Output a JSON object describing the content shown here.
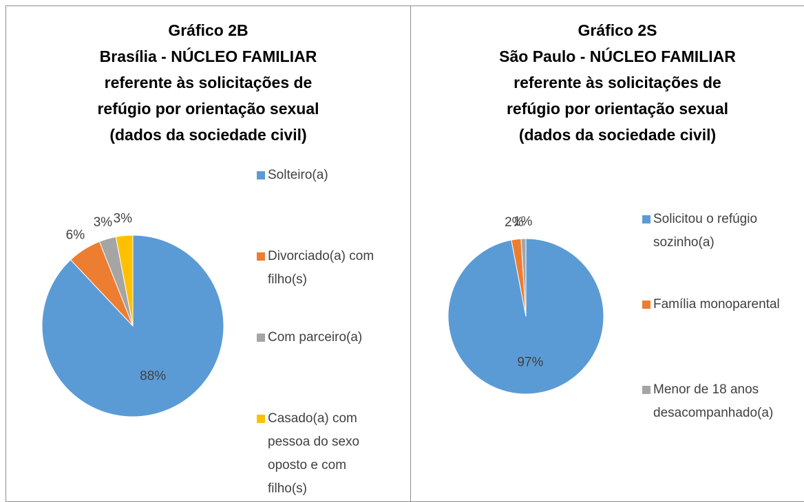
{
  "chart_data": [
    {
      "type": "pie",
      "title": [
        "Gráfico 2B",
        "Brasília - NÚCLEO FAMILIAR",
        "referente às solicitações de",
        "refúgio por orientação sexual",
        "(dados da sociedade civil)"
      ],
      "categories": [
        "Solteiro(a)",
        "Divorciado(a) com filho(s)",
        "Com parceiro(a)",
        "Casado(a) com pessoa do sexo oposto e com filho(s)"
      ],
      "values": [
        88,
        6,
        3,
        3
      ],
      "value_labels": [
        "88%",
        "6%",
        "3%",
        "3%"
      ],
      "colors": [
        "#5b9bd5",
        "#ed7d31",
        "#a5a5a5",
        "#ffc000"
      ],
      "legend": "right"
    },
    {
      "type": "pie",
      "title": [
        "Gráfico 2S",
        "São Paulo - NÚCLEO FAMILIAR",
        "referente às solicitações de",
        "refúgio por orientação sexual",
        "(dados da sociedade civil)"
      ],
      "categories": [
        "Solicitou o refúgio sozinho(a)",
        "Família monoparental",
        "Menor de 18 anos desacompanhado(a)"
      ],
      "values": [
        97,
        2,
        1
      ],
      "value_labels": [
        "97%",
        "2%",
        "1%"
      ],
      "colors": [
        "#5b9bd5",
        "#ed7d31",
        "#a5a5a5"
      ],
      "legend": "right"
    }
  ]
}
